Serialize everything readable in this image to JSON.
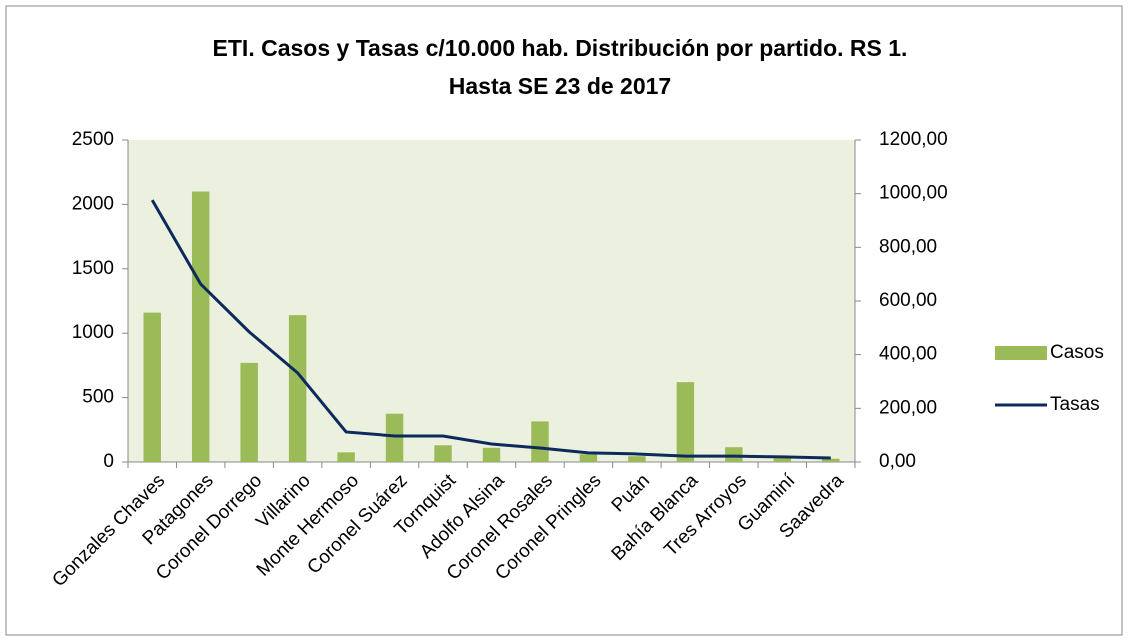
{
  "chart_data": {
    "type": "bar_line",
    "title": [
      "ETI. Casos y Tasas c/10.000 hab. Distribución por partido. RS 1.",
      "Hasta SE 23 de 2017"
    ],
    "categories": [
      "Gonzales Chaves",
      "Patagones",
      "Coronel Dorrego",
      "Villarino",
      "Monte Hermoso",
      "Coronel Suárez",
      "Tornquist",
      "Adolfo Alsina",
      "Coronel Rosales",
      "Coronel Pringles",
      "Puán",
      "Bahía Blanca",
      "Tres Arroyos",
      "Guaminí",
      "Saavedra"
    ],
    "series": [
      {
        "name": "Casos",
        "type": "bar",
        "color": "#9bbb59",
        "values": [
          1160,
          2100,
          770,
          1140,
          75,
          375,
          130,
          110,
          315,
          60,
          45,
          620,
          115,
          30,
          25
        ]
      },
      {
        "name": "Tasas",
        "type": "line",
        "axis": "y2",
        "color": "#0d2a5c",
        "values": [
          976,
          663,
          485,
          332,
          112,
          97,
          97,
          67,
          52,
          34,
          30,
          22,
          22,
          19,
          15
        ]
      }
    ],
    "ylim": [
      0,
      2500
    ],
    "yticks": [
      0,
      500,
      1000,
      1500,
      2000,
      2500
    ],
    "y2lim": [
      0,
      1200
    ],
    "y2ticks": [
      {
        "value": 0,
        "label": "0,00"
      },
      {
        "value": 200,
        "label": "200,00"
      },
      {
        "value": 400,
        "label": "400,00"
      },
      {
        "value": 600,
        "label": "600,00"
      },
      {
        "value": 800,
        "label": "800,00"
      },
      {
        "value": 1000,
        "label": "1000,00"
      },
      {
        "value": 1200,
        "label": "1200,00"
      }
    ],
    "legend": "right"
  }
}
